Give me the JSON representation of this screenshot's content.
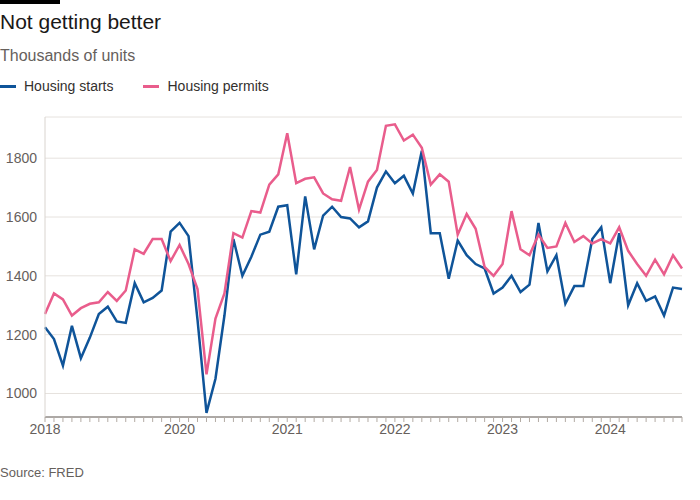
{
  "chart_data": {
    "type": "line",
    "title": "Not getting better",
    "subtitle": "Thousands of units",
    "source": "Source: FRED",
    "legend": "top left",
    "grid": true,
    "categories": [
      "2018",
      null,
      null,
      null,
      null,
      null,
      null,
      null,
      null,
      null,
      null,
      null,
      null,
      null,
      null,
      "2020",
      null,
      null,
      null,
      null,
      null,
      null,
      null,
      null,
      null,
      null,
      null,
      "2021",
      null,
      null,
      null,
      null,
      null,
      null,
      null,
      null,
      null,
      null,
      null,
      "2022",
      null,
      null,
      null,
      null,
      null,
      null,
      null,
      null,
      null,
      null,
      null,
      "2023",
      null,
      null,
      null,
      null,
      null,
      null,
      null,
      null,
      null,
      null,
      null,
      "2024",
      null,
      null,
      null,
      null,
      null,
      null,
      null,
      null
    ],
    "series": [
      {
        "name": "Housing starts",
        "color": "#0f5499",
        "values": [
          1225,
          1185,
          1095,
          1230,
          1120,
          1190,
          1270,
          1295,
          1245,
          1240,
          1375,
          1310,
          1325,
          1350,
          1550,
          1580,
          1535,
          1250,
          934,
          1050,
          1265,
          1525,
          1400,
          1465,
          1540,
          1550,
          1635,
          1640,
          1405,
          1670,
          1490,
          1605,
          1635,
          1600,
          1595,
          1565,
          1585,
          1700,
          1755,
          1715,
          1740,
          1680,
          1825,
          1545,
          1545,
          1390,
          1520,
          1470,
          1440,
          1425,
          1340,
          1360,
          1400,
          1345,
          1370,
          1580,
          1415,
          1470,
          1305,
          1365,
          1365,
          1525,
          1565,
          1375,
          1545,
          1300,
          1375,
          1315,
          1330,
          1265,
          1360,
          1355
        ]
      },
      {
        "name": "Housing permits",
        "color": "#e95d8c",
        "values": [
          1270,
          1340,
          1320,
          1265,
          1290,
          1305,
          1310,
          1345,
          1315,
          1350,
          1490,
          1475,
          1525,
          1525,
          1450,
          1505,
          1440,
          1355,
          1065,
          1255,
          1340,
          1545,
          1530,
          1620,
          1615,
          1710,
          1745,
          1885,
          1715,
          1730,
          1735,
          1680,
          1660,
          1655,
          1770,
          1625,
          1720,
          1760,
          1910,
          1915,
          1860,
          1880,
          1835,
          1710,
          1745,
          1720,
          1540,
          1610,
          1560,
          1430,
          1400,
          1440,
          1620,
          1490,
          1470,
          1540,
          1495,
          1500,
          1580,
          1515,
          1535,
          1510,
          1525,
          1510,
          1565,
          1485,
          1440,
          1400,
          1455,
          1405,
          1470,
          1425
        ]
      }
    ],
    "ylim": [
      920,
      1940
    ],
    "yticks": [
      1000,
      1200,
      1400,
      1600,
      1800
    ]
  }
}
